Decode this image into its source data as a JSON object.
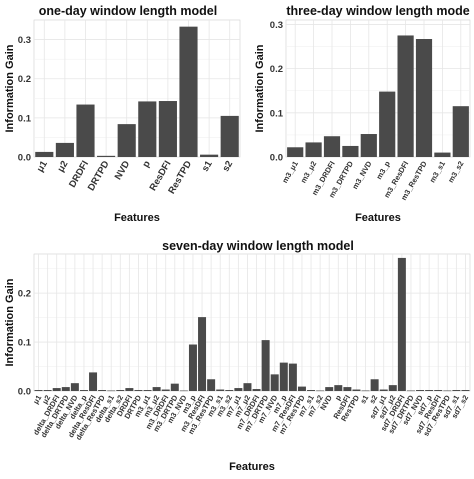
{
  "chart_data": [
    {
      "type": "bar",
      "title": "one-day window length model",
      "xlabel": "Features",
      "ylabel": "Information Gain",
      "ylim": [
        0,
        0.35
      ],
      "yticks": [
        "0.0",
        "0.1",
        "0.2",
        "0.3"
      ],
      "yticks_values": [
        0,
        0.1,
        0.2,
        0.3
      ],
      "grid": true,
      "categories": [
        "μ1",
        "μ2",
        "DRDFI",
        "DRTPD",
        "NVD",
        "p",
        "ResDFI",
        "ResTPD",
        "s1",
        "s2"
      ],
      "values": [
        0.013,
        0.036,
        0.134,
        0.003,
        0.084,
        0.142,
        0.143,
        0.333,
        0.006,
        0.105
      ]
    },
    {
      "type": "bar",
      "title": "three-day window length mode",
      "xlabel": "Features",
      "ylabel": "Information Gain",
      "ylim": [
        0,
        0.31
      ],
      "yticks": [
        "0.0",
        "0.1",
        "0.2",
        "0.3"
      ],
      "yticks_values": [
        0,
        0.1,
        0.2,
        0.3
      ],
      "grid": true,
      "categories": [
        "m3_μ1",
        "m3_μ2",
        "m3_DRDFI",
        "m3_DRTPD",
        "m3_NVD",
        "m3_p",
        "m3_ResDFI",
        "m3_ResTPD",
        "m3_s1",
        "m3_s2"
      ],
      "values": [
        0.022,
        0.033,
        0.047,
        0.025,
        0.052,
        0.148,
        0.275,
        0.267,
        0.01,
        0.115
      ]
    },
    {
      "type": "bar",
      "title": "seven-day window length model",
      "xlabel": "Features",
      "ylabel": "Information Gain",
      "ylim": [
        0,
        0.28
      ],
      "yticks": [
        "0.0",
        "0.1",
        "0.2"
      ],
      "yticks_values": [
        0,
        0.1,
        0.2
      ],
      "grid": true,
      "categories": [
        "μ1",
        "μ2",
        "delta_DRDFI",
        "delta_DRTPD",
        "delta_NVD",
        "delta_p",
        "delta_ResDFI",
        "delta_ResTPD",
        "delta_s1",
        "delta_s2",
        "DRDFI",
        "DRTPD",
        "m3_μ1",
        "m3_μ2",
        "m3_DRDFI",
        "m3_DRTPD",
        "m3_NVD",
        "m3_p",
        "m3_ResDFI",
        "m3_ResTPD",
        "m3_s1",
        "m3_s2",
        "m7_μ1",
        "m7_μ2",
        "m7_DRDFI",
        "m7_DRTPD",
        "m7_NVD",
        "m7_p",
        "m7_ResDFI",
        "m7_ResTPD",
        "m7_s1",
        "m7_s2",
        "NVD",
        "p",
        "ResDFI",
        "ResTPD",
        "s1",
        "s2",
        "sd7_μ1",
        "sd7_μ2",
        "sd7_DRDFI",
        "sd7_DRTPD",
        "sd7_NVD",
        "sd7_p",
        "sd7_ResDFI",
        "sd7_ResTPD",
        "sd7_s1",
        "sd7_s2"
      ],
      "values": [
        0.002,
        0.002,
        0.006,
        0.008,
        0.016,
        0.002,
        0.038,
        0.002,
        0.001,
        0.002,
        0.006,
        0.002,
        0.002,
        0.008,
        0.003,
        0.015,
        0.001,
        0.095,
        0.151,
        0.024,
        0.003,
        0.002,
        0.006,
        0.016,
        0.004,
        0.104,
        0.034,
        0.058,
        0.056,
        0.009,
        0.002,
        0.001,
        0.008,
        0.012,
        0.008,
        0.003,
        0.001,
        0.024,
        0.003,
        0.012,
        0.272,
        0.001,
        0.002,
        0.002,
        0.002,
        0.001,
        0.002,
        0.002
      ]
    }
  ]
}
